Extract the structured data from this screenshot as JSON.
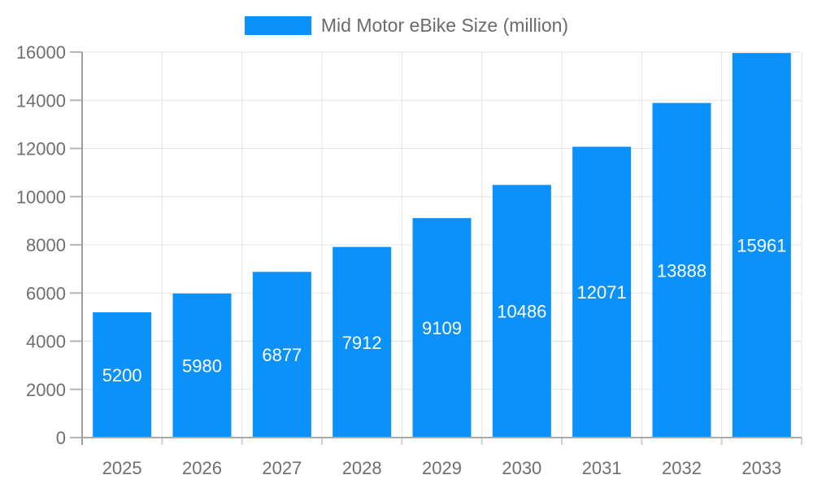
{
  "chart_data": {
    "type": "bar",
    "title": "",
    "xlabel": "",
    "ylabel": "",
    "legend": {
      "label": "Mid Motor eBike Size (million)",
      "position": "top-center"
    },
    "categories": [
      "2025",
      "2026",
      "2027",
      "2028",
      "2029",
      "2030",
      "2031",
      "2032",
      "2033"
    ],
    "series": [
      {
        "name": "Mid Motor eBike Size (million)",
        "values": [
          5200,
          5980,
          6877,
          7912,
          9109,
          10486,
          12071,
          13888,
          15961
        ],
        "color": "#0a91fb"
      }
    ],
    "ylim": [
      0,
      16000
    ],
    "ytick_step": 2000,
    "yticks": [
      0,
      2000,
      4000,
      6000,
      8000,
      10000,
      12000,
      14000,
      16000
    ],
    "grid": true,
    "value_labels": {
      "position": "inside-center",
      "color": "#ffffff"
    },
    "colors": {
      "background": "#ffffff",
      "bar": "#0a91fb",
      "gridline": "#e4e4e4",
      "axis_line": "#9e9e9e",
      "bottom_axis_line": "#ababab",
      "y_tick": "#b5b5b5",
      "x_boundary_tick": "#cfcfcf",
      "tick_label": "#6f6f6f",
      "legend_text": "#6b6b6b",
      "value_label": "#ffffff"
    }
  }
}
